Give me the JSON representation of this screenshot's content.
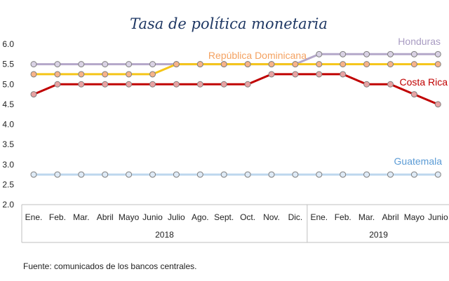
{
  "chart_data": {
    "type": "line",
    "title": "Tasa de política monetaria",
    "categories": [
      "Ene.",
      "Feb.",
      "Mar.",
      "Abril",
      "Mayo",
      "Junio",
      "Julio",
      "Ago.",
      "Sept.",
      "Oct.",
      "Nov.",
      "Dic.",
      "Ene.",
      "Feb.",
      "Mar.",
      "Abril",
      "Mayo",
      "Junio"
    ],
    "years": [
      {
        "label": "2018",
        "from": 0,
        "to": 11
      },
      {
        "label": "2019",
        "from": 12,
        "to": 17
      }
    ],
    "ylim": [
      2.0,
      6.0
    ],
    "yticks": [
      "2.0",
      "2.5",
      "3.0",
      "3.5",
      "4.0",
      "4.5",
      "5.0",
      "5.5",
      "6.0"
    ],
    "grid": false,
    "series": [
      {
        "name": "Honduras",
        "color": "#B4A7C9",
        "markerFill": "#D9D2E4",
        "values": [
          5.5,
          5.5,
          5.5,
          5.5,
          5.5,
          5.5,
          5.5,
          5.5,
          5.5,
          5.5,
          5.5,
          5.5,
          5.75,
          5.75,
          5.75,
          5.75,
          5.75,
          5.75
        ]
      },
      {
        "name": "República Dominicana",
        "color": "#F5C518",
        "markerFill": "#F7B38A",
        "values": [
          5.25,
          5.25,
          5.25,
          5.25,
          5.25,
          5.25,
          5.5,
          5.5,
          5.5,
          5.5,
          5.5,
          5.5,
          5.5,
          5.5,
          5.5,
          5.5,
          5.5,
          5.5
        ]
      },
      {
        "name": "Costa Rica",
        "color": "#C00000",
        "markerFill": "#E8A3A3",
        "values": [
          4.75,
          5.0,
          5.0,
          5.0,
          5.0,
          5.0,
          5.0,
          5.0,
          5.0,
          5.0,
          5.25,
          5.25,
          5.25,
          5.25,
          5.0,
          5.0,
          4.75,
          4.5
        ]
      },
      {
        "name": "Guatemala",
        "color": "#BDD7EE",
        "markerFill": "#DEEAF6",
        "values": [
          2.75,
          2.75,
          2.75,
          2.75,
          2.75,
          2.75,
          2.75,
          2.75,
          2.75,
          2.75,
          2.75,
          2.75,
          2.75,
          2.75,
          2.75,
          2.75,
          2.75,
          2.75
        ]
      }
    ],
    "labelColors": {
      "Honduras": "#A89BC2",
      "República Dominicana": "#F4A261",
      "Costa Rica": "#C00000",
      "Guatemala": "#5B9BD5"
    }
  },
  "source": "Fuente: comunicados de los bancos centrales."
}
